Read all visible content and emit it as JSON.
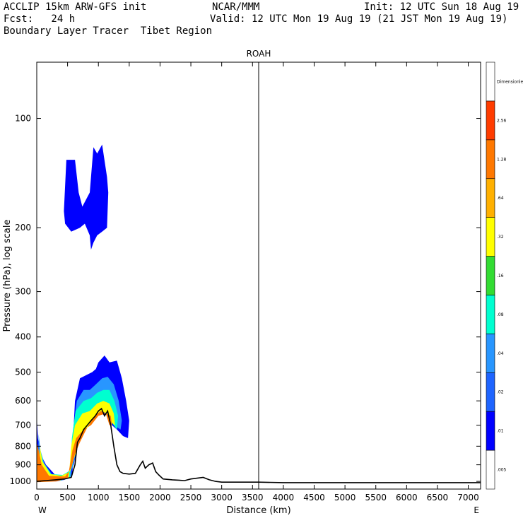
{
  "header": {
    "line1_left": "ACCLIP 15km ARW-GFS init",
    "line1_center": "NCAR/MMM",
    "line1_right": "Init: 12 UTC Sun 18 Aug 19",
    "line2_left": "Fcst:   24 h",
    "line2_right": "Valid: 12 UTC Mon 19 Aug 19 (21 JST Mon 19 Aug 19)",
    "line3_left": "Boundary Layer Tracer  Tibet Region"
  },
  "chart_data": {
    "type": "area",
    "title": "ROAH",
    "xlabel": "Distance (km)",
    "ylabel": "Pressure (hPa), log scale",
    "xlim": [
      0,
      7200
    ],
    "ylim": [
      1050,
      70
    ],
    "y_scale": "log",
    "x_ticks": [
      0,
      500,
      1000,
      1500,
      2000,
      2500,
      3000,
      3500,
      4000,
      4500,
      5000,
      5500,
      6000,
      6500,
      7000
    ],
    "y_ticks": [
      100,
      200,
      300,
      400,
      500,
      600,
      700,
      800,
      900,
      1000
    ],
    "x_end_labels": {
      "left": "W",
      "right": "E"
    },
    "marker_line_x": 3600,
    "colorbar": {
      "title": "Dimensionless",
      "levels": [
        ".005",
        ".01",
        ".02",
        ".04",
        ".08",
        ".16",
        ".32",
        ".64",
        "1.28",
        "2.56",
        "Dimensionless"
      ],
      "colors": [
        "#ffffff",
        "#0000ff",
        "#1e64ff",
        "#2896ff",
        "#00ffd0",
        "#32dc32",
        "#ffff00",
        "#ffb000",
        "#ff7800",
        "#ff3c00"
      ]
    },
    "terrain": {
      "name": "surface pressure",
      "x": [
        0,
        150,
        300,
        450,
        560,
        620,
        660,
        700,
        760,
        820,
        880,
        950,
        1000,
        1050,
        1100,
        1150,
        1200,
        1250,
        1300,
        1350,
        1400,
        1500,
        1600,
        1680,
        1720,
        1760,
        1820,
        1880,
        1930,
        1980,
        2050,
        2200,
        2400,
        2500,
        2600,
        2700,
        2800,
        2900,
        3000,
        3200,
        3600,
        4000,
        5000,
        6000,
        7000,
        7200
      ],
      "p": [
        1000,
        995,
        990,
        985,
        975,
        900,
        780,
        760,
        720,
        700,
        680,
        660,
        640,
        630,
        660,
        640,
        700,
        800,
        900,
        940,
        950,
        955,
        950,
        900,
        880,
        920,
        900,
        890,
        940,
        960,
        985,
        990,
        995,
        985,
        980,
        975,
        990,
        1000,
        1005,
        1005,
        1005,
        1008,
        1008,
        1008,
        1008,
        1008
      ]
    },
    "contour_regions": [
      {
        "level": ".01",
        "color": "#0000ff",
        "points": [
          [
            480,
            130
          ],
          [
            620,
            130
          ],
          [
            680,
            160
          ],
          [
            740,
            175
          ],
          [
            860,
            160
          ],
          [
            920,
            120
          ],
          [
            980,
            125
          ],
          [
            1060,
            118
          ],
          [
            1140,
            145
          ],
          [
            1160,
            160
          ],
          [
            1140,
            200
          ],
          [
            1060,
            205
          ],
          [
            980,
            210
          ],
          [
            920,
            220
          ],
          [
            880,
            230
          ],
          [
            860,
            210
          ],
          [
            780,
            195
          ],
          [
            700,
            200
          ],
          [
            560,
            205
          ],
          [
            460,
            195
          ],
          [
            440,
            180
          ]
        ]
      },
      {
        "level": ".01",
        "color": "#0000ff",
        "points": [
          [
            0,
            1000
          ],
          [
            320,
            1000
          ],
          [
            450,
            990
          ],
          [
            580,
            960
          ],
          [
            600,
            700
          ],
          [
            620,
            600
          ],
          [
            700,
            520
          ],
          [
            800,
            510
          ],
          [
            900,
            500
          ],
          [
            960,
            490
          ],
          [
            1000,
            470
          ],
          [
            1100,
            450
          ],
          [
            1180,
            470
          ],
          [
            1300,
            465
          ],
          [
            1380,
            520
          ],
          [
            1450,
            600
          ],
          [
            1500,
            680
          ],
          [
            1480,
            760
          ],
          [
            1400,
            750
          ],
          [
            1300,
            720
          ],
          [
            1220,
            700
          ],
          [
            1160,
            640
          ],
          [
            1100,
            660
          ],
          [
            1020,
            640
          ],
          [
            960,
            660
          ],
          [
            880,
            680
          ],
          [
            780,
            720
          ],
          [
            680,
            780
          ],
          [
            600,
            900
          ],
          [
            500,
            960
          ],
          [
            300,
            960
          ],
          [
            150,
            900
          ],
          [
            60,
            840
          ],
          [
            20,
            760
          ],
          [
            0,
            660
          ]
        ]
      },
      {
        "level": ".04",
        "color": "#2896ff",
        "points": [
          [
            20,
            1000
          ],
          [
            400,
            995
          ],
          [
            560,
            970
          ],
          [
            590,
            720
          ],
          [
            650,
            600
          ],
          [
            760,
            560
          ],
          [
            860,
            560
          ],
          [
            960,
            540
          ],
          [
            1060,
            520
          ],
          [
            1150,
            515
          ],
          [
            1250,
            540
          ],
          [
            1330,
            600
          ],
          [
            1380,
            680
          ],
          [
            1360,
            720
          ],
          [
            1250,
            700
          ],
          [
            1160,
            640
          ],
          [
            1060,
            640
          ],
          [
            960,
            660
          ],
          [
            860,
            690
          ],
          [
            760,
            730
          ],
          [
            660,
            800
          ],
          [
            580,
            920
          ],
          [
            440,
            960
          ],
          [
            250,
            960
          ],
          [
            120,
            890
          ],
          [
            60,
            820
          ],
          [
            30,
            740
          ]
        ]
      },
      {
        "level": ".08",
        "color": "#00ffd0",
        "points": [
          [
            30,
            1000
          ],
          [
            380,
            995
          ],
          [
            540,
            970
          ],
          [
            570,
            760
          ],
          [
            630,
            640
          ],
          [
            760,
            600
          ],
          [
            880,
            590
          ],
          [
            980,
            570
          ],
          [
            1080,
            560
          ],
          [
            1180,
            560
          ],
          [
            1260,
            600
          ],
          [
            1320,
            660
          ],
          [
            1300,
            720
          ],
          [
            1220,
            690
          ],
          [
            1140,
            650
          ],
          [
            1040,
            640
          ],
          [
            940,
            660
          ],
          [
            840,
            700
          ],
          [
            720,
            760
          ],
          [
            620,
            840
          ],
          [
            560,
            930
          ],
          [
            420,
            960
          ],
          [
            240,
            955
          ],
          [
            110,
            890
          ],
          [
            50,
            810
          ]
        ]
      },
      {
        "level": ".32",
        "color": "#ffff00",
        "points": [
          [
            40,
            1000
          ],
          [
            350,
            995
          ],
          [
            520,
            975
          ],
          [
            560,
            800
          ],
          [
            620,
            700
          ],
          [
            740,
            650
          ],
          [
            860,
            640
          ],
          [
            980,
            610
          ],
          [
            1080,
            600
          ],
          [
            1180,
            610
          ],
          [
            1250,
            650
          ],
          [
            1270,
            700
          ],
          [
            1220,
            690
          ],
          [
            1140,
            650
          ],
          [
            1040,
            640
          ],
          [
            940,
            660
          ],
          [
            820,
            710
          ],
          [
            690,
            780
          ],
          [
            600,
            870
          ],
          [
            540,
            940
          ],
          [
            400,
            965
          ],
          [
            220,
            955
          ],
          [
            90,
            880
          ],
          [
            50,
            800
          ]
        ]
      },
      {
        "level": "1.28",
        "color": "#ff7800",
        "points": [
          [
            0,
            1005
          ],
          [
            320,
            1000
          ],
          [
            500,
            980
          ],
          [
            540,
            900
          ],
          [
            580,
            820
          ],
          [
            640,
            760
          ],
          [
            760,
            720
          ],
          [
            880,
            700
          ],
          [
            1000,
            660
          ],
          [
            1120,
            650
          ],
          [
            1200,
            660
          ],
          [
            1220,
            700
          ],
          [
            1180,
            700
          ],
          [
            1120,
            650
          ],
          [
            1040,
            640
          ],
          [
            940,
            660
          ],
          [
            820,
            710
          ],
          [
            700,
            780
          ],
          [
            620,
            840
          ],
          [
            560,
            920
          ],
          [
            460,
            970
          ],
          [
            200,
            965
          ],
          [
            80,
            900
          ],
          [
            30,
            820
          ],
          [
            0,
            780
          ]
        ]
      }
    ]
  }
}
